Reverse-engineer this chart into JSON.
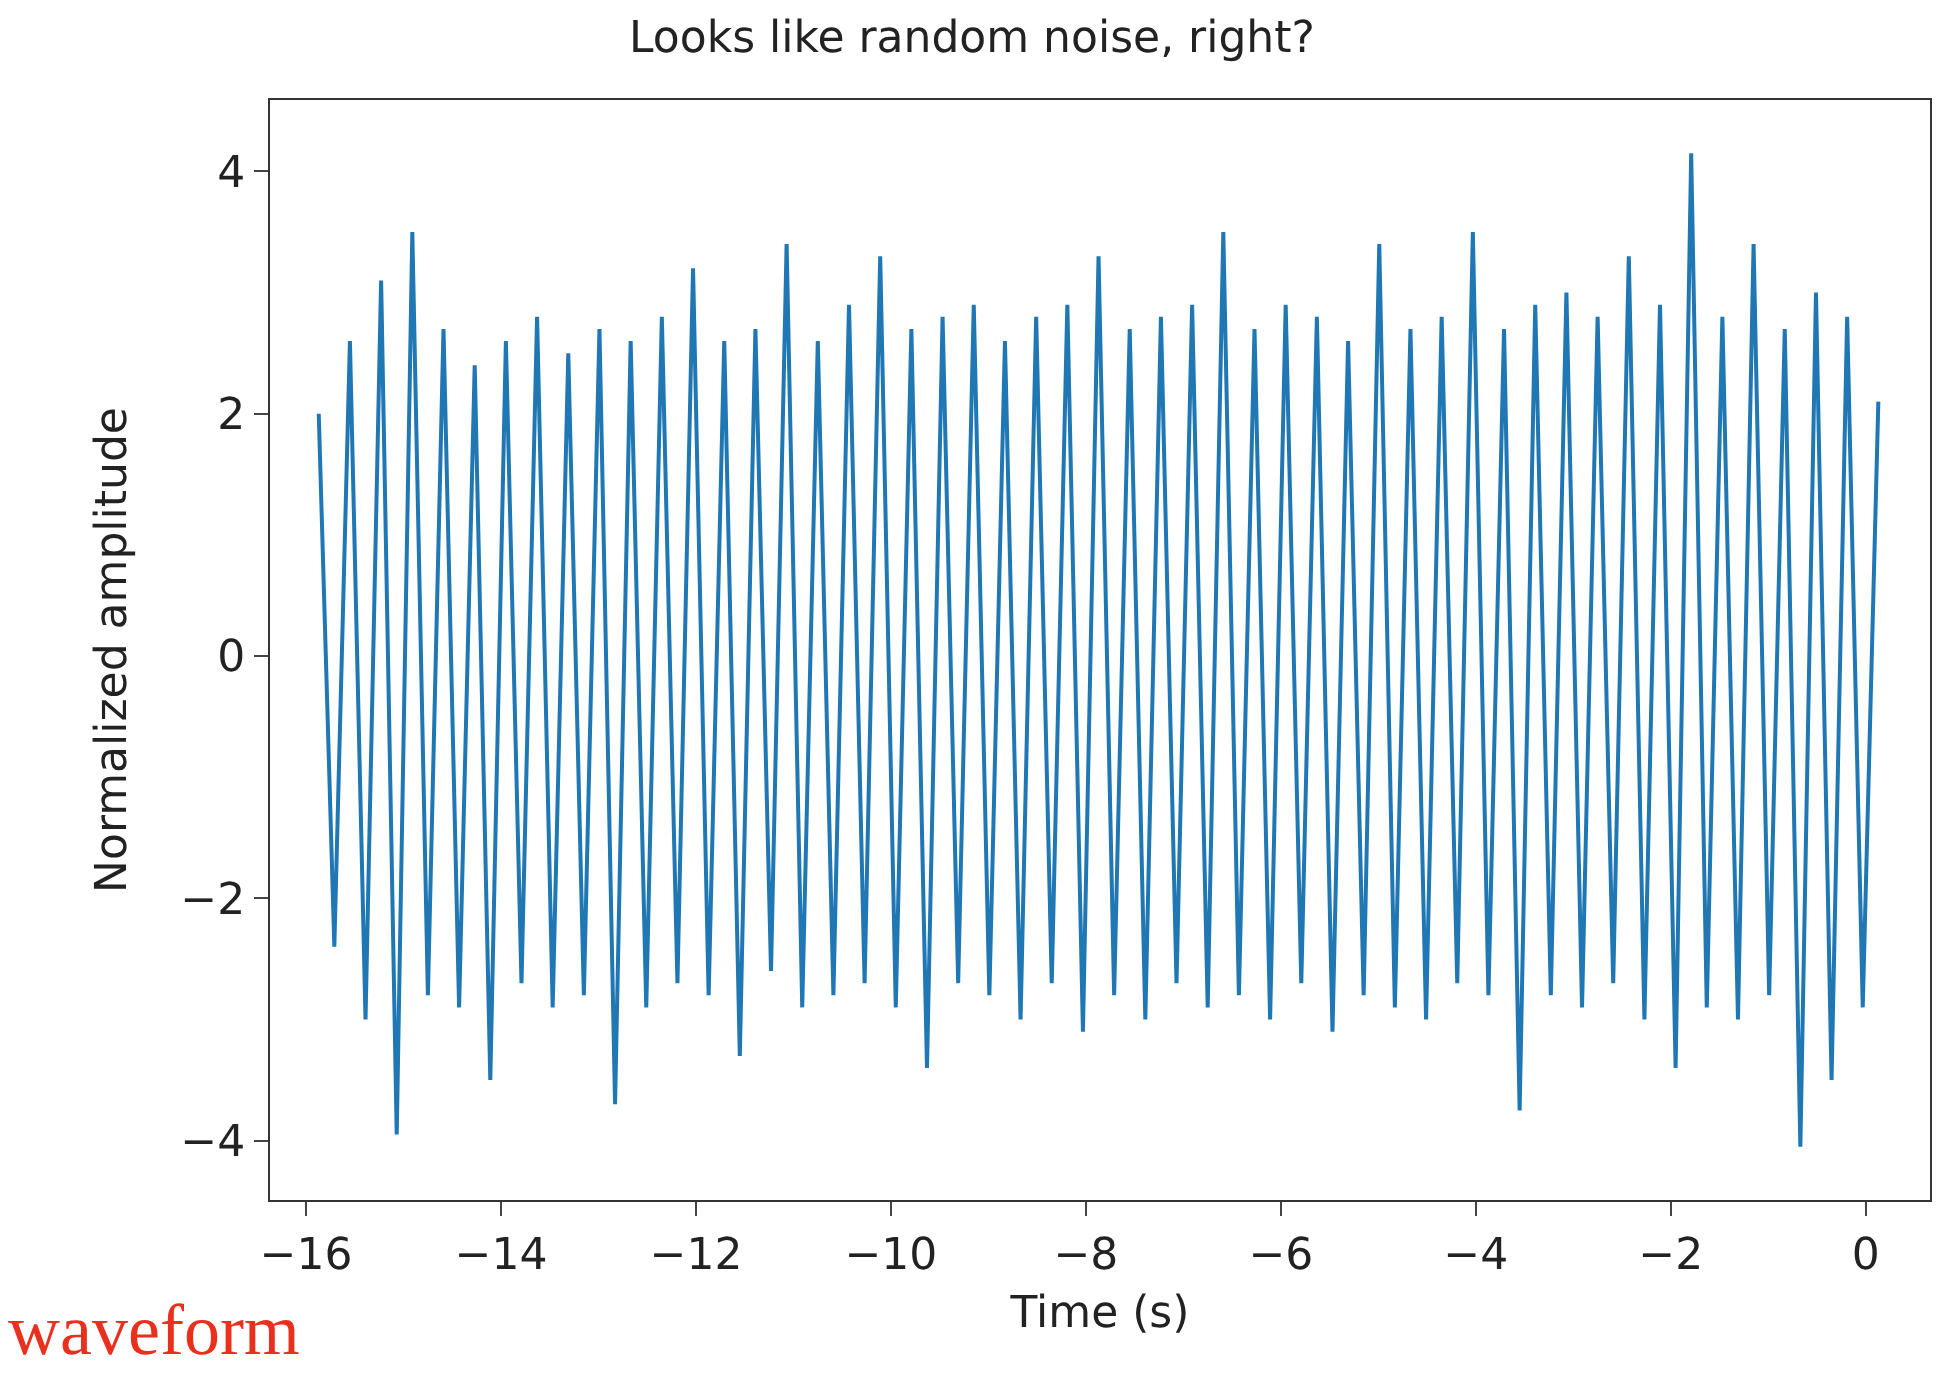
{
  "chart_data": {
    "type": "line",
    "title": "Looks like random noise, right?",
    "xlabel": "Time (s)",
    "ylabel": "Normalized amplitude",
    "annotations": [
      "waveform"
    ],
    "xlim": [
      -16.37,
      0.66
    ],
    "ylim": [
      -4.49,
      4.59
    ],
    "xticks": [
      {
        "value": -16,
        "label": "−16"
      },
      {
        "value": -14,
        "label": "−14"
      },
      {
        "value": -12,
        "label": "−12"
      },
      {
        "value": -10,
        "label": "−10"
      },
      {
        "value": -8,
        "label": "−8"
      },
      {
        "value": -6,
        "label": "−6"
      },
      {
        "value": -4,
        "label": "−4"
      },
      {
        "value": -2,
        "label": "−2"
      },
      0
    ],
    "yticks": [
      {
        "value": -4,
        "label": "−4"
      },
      {
        "value": -2,
        "label": "−2"
      },
      0,
      2,
      4
    ],
    "grid": false,
    "marker": "none",
    "line_style": "solid",
    "x": [
      -15.87,
      -15.71,
      -15.55,
      -15.39,
      -15.23,
      -15.07,
      -14.91,
      -14.75,
      -14.59,
      -14.43,
      -14.27,
      -14.11,
      -13.95,
      -13.79,
      -13.63,
      -13.47,
      -13.31,
      -13.15,
      -12.99,
      -12.83,
      -12.67,
      -12.51,
      -12.35,
      -12.19,
      -12.03,
      -11.87,
      -11.71,
      -11.55,
      -11.39,
      -11.23,
      -11.07,
      -10.91,
      -10.75,
      -10.59,
      -10.43,
      -10.27,
      -10.11,
      -9.95,
      -9.79,
      -9.63,
      -9.47,
      -9.31,
      -9.15,
      -8.99,
      -8.83,
      -8.67,
      -8.51,
      -8.35,
      -8.19,
      -8.03,
      -7.87,
      -7.71,
      -7.55,
      -7.39,
      -7.23,
      -7.07,
      -6.91,
      -6.75,
      -6.59,
      -6.43,
      -6.27,
      -6.11,
      -5.95,
      -5.79,
      -5.63,
      -5.47,
      -5.31,
      -5.15,
      -4.99,
      -4.83,
      -4.67,
      -4.51,
      -4.35,
      -4.19,
      -4.03,
      -3.87,
      -3.71,
      -3.55,
      -3.39,
      -3.23,
      -3.07,
      -2.91,
      -2.75,
      -2.59,
      -2.43,
      -2.27,
      -2.11,
      -1.95,
      -1.79,
      -1.63,
      -1.47,
      -1.31,
      -1.15,
      -0.99,
      -0.83,
      -0.67,
      -0.51,
      -0.35,
      -0.19,
      -0.03,
      0.13
    ],
    "series": [
      {
        "color": "#1f77b4",
        "values": [
          2.0,
          -2.4,
          2.6,
          -3.0,
          3.1,
          -3.95,
          3.5,
          -2.8,
          2.7,
          -2.9,
          2.4,
          -3.5,
          2.6,
          -2.7,
          2.8,
          -2.9,
          2.5,
          -2.8,
          2.7,
          -3.7,
          2.6,
          -2.9,
          2.8,
          -2.7,
          3.2,
          -2.8,
          2.6,
          -3.3,
          2.7,
          -2.6,
          3.4,
          -2.9,
          2.6,
          -2.8,
          2.9,
          -2.7,
          3.3,
          -2.9,
          2.7,
          -3.4,
          2.8,
          -2.7,
          2.9,
          -2.8,
          2.6,
          -3.0,
          2.8,
          -2.7,
          2.9,
          -3.1,
          3.3,
          -2.8,
          2.7,
          -3.0,
          2.8,
          -2.7,
          2.9,
          -2.9,
          3.5,
          -2.8,
          2.7,
          -3.0,
          2.9,
          -2.7,
          2.8,
          -3.1,
          2.6,
          -2.8,
          3.4,
          -2.9,
          2.7,
          -3.0,
          2.8,
          -2.7,
          3.5,
          -2.8,
          2.7,
          -3.75,
          2.9,
          -2.8,
          3.0,
          -2.9,
          2.8,
          -2.7,
          3.3,
          -3.0,
          2.9,
          -3.4,
          4.15,
          -2.9,
          2.8,
          -3.0,
          3.4,
          -2.8,
          2.7,
          -4.05,
          3.0,
          -3.5,
          2.8,
          -2.9,
          2.1
        ]
      }
    ]
  }
}
